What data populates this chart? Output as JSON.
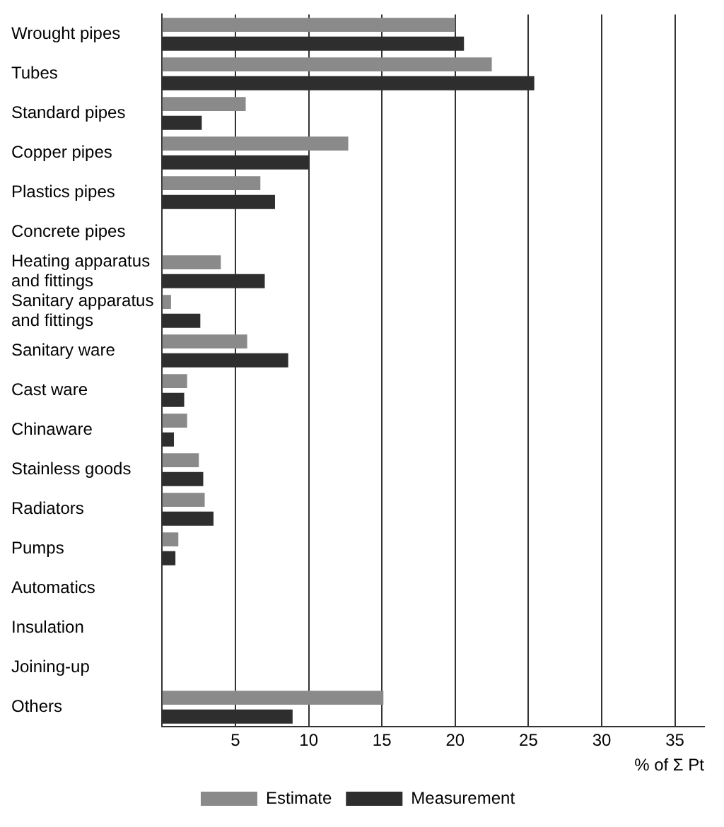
{
  "chart_data": {
    "type": "bar",
    "orientation": "horizontal",
    "xlabel": "% of Σ Pt",
    "categories": [
      "Wrought pipes",
      "Tubes",
      "Standard pipes",
      "Copper pipes",
      "Plastics pipes",
      "Concrete pipes",
      "Heating apparatus and fittings",
      "Sanitary apparatus and fittings",
      "Sanitary ware",
      "Cast ware",
      "Chinaware",
      "Stainless goods",
      "Radiators",
      "Pumps",
      "Automatics",
      "Insulation",
      "Joining-up",
      "Others"
    ],
    "series": [
      {
        "name": "Estimate",
        "color": "#8a8a8a",
        "values": [
          20.0,
          22.5,
          5.7,
          12.7,
          6.7,
          0,
          4.0,
          0.6,
          5.8,
          1.7,
          1.7,
          2.5,
          2.9,
          1.1,
          0,
          0,
          0,
          15.1
        ]
      },
      {
        "name": "Measurement",
        "color": "#2e2e2e",
        "values": [
          20.6,
          25.4,
          2.7,
          10.0,
          7.7,
          0,
          7.0,
          2.6,
          8.6,
          1.5,
          0.8,
          2.8,
          3.5,
          0.9,
          0,
          0,
          0,
          8.9
        ]
      }
    ],
    "xlim": [
      0,
      37
    ],
    "xticks": [
      5,
      10,
      15,
      20,
      25,
      30,
      35
    ],
    "grid": "x",
    "legend": "bottom"
  }
}
